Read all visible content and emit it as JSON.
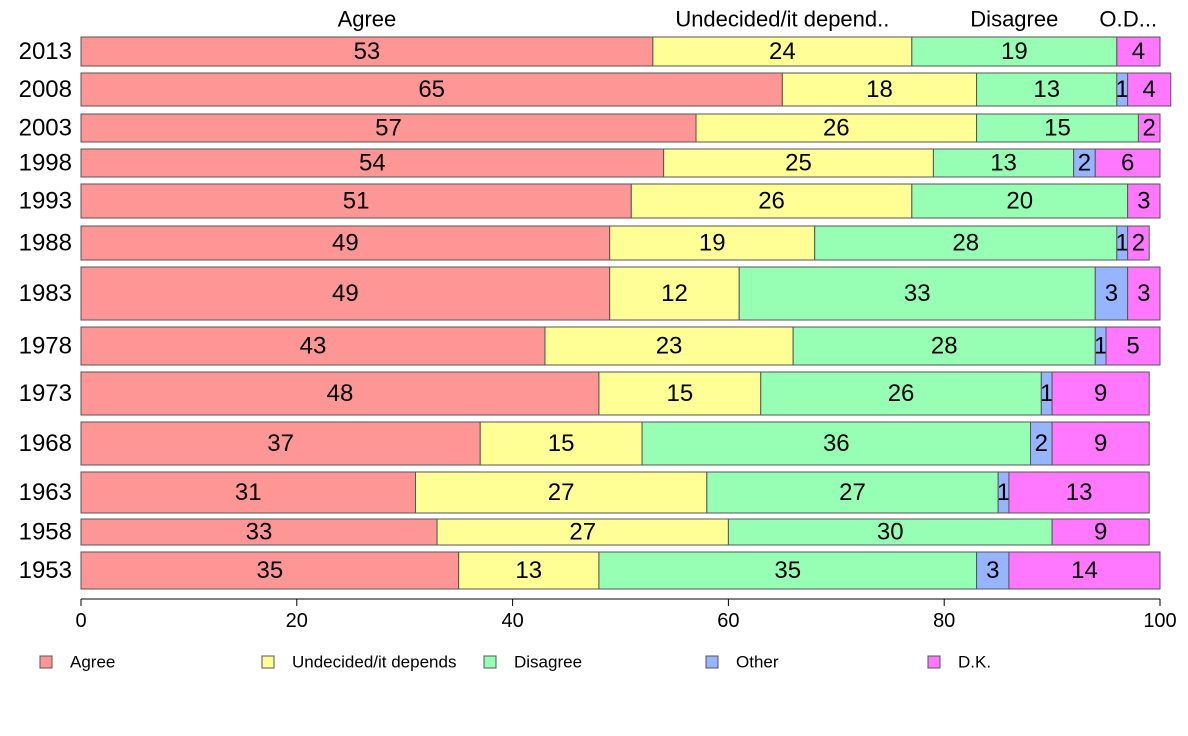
{
  "chart_data": {
    "type": "bar",
    "orientation": "horizontal",
    "stacked": true,
    "categories": [
      "2013",
      "2008",
      "2003",
      "1998",
      "1993",
      "1988",
      "1983",
      "1978",
      "1973",
      "1968",
      "1963",
      "1958",
      "1953"
    ],
    "series": [
      {
        "name": "Agree",
        "color": "#ff9696",
        "values": [
          53,
          65,
          57,
          54,
          51,
          49,
          49,
          43,
          48,
          37,
          31,
          33,
          35
        ]
      },
      {
        "name": "Undecided/it depends",
        "color": "#ffff96",
        "values": [
          24,
          18,
          26,
          25,
          26,
          19,
          12,
          23,
          15,
          15,
          27,
          27,
          13
        ]
      },
      {
        "name": "Disagree",
        "color": "#96ffb4",
        "values": [
          19,
          13,
          15,
          13,
          20,
          28,
          33,
          28,
          26,
          36,
          27,
          30,
          35
        ]
      },
      {
        "name": "Other",
        "color": "#96b4ff",
        "values": [
          0,
          1,
          0,
          2,
          0,
          1,
          3,
          1,
          1,
          2,
          1,
          0,
          3
        ]
      },
      {
        "name": "D.K.",
        "color": "#ff78ff",
        "values": [
          4,
          4,
          2,
          6,
          3,
          2,
          3,
          5,
          9,
          9,
          13,
          9,
          14
        ]
      }
    ],
    "column_headers": [
      "Agree",
      "Undecided/it depend..",
      "Disagree",
      "O..",
      "D..."
    ],
    "xlim": [
      0,
      100
    ],
    "xticks": [
      "0",
      "20",
      "40",
      "60",
      "80",
      "100"
    ],
    "grid": false,
    "legend_position": "bottom"
  }
}
